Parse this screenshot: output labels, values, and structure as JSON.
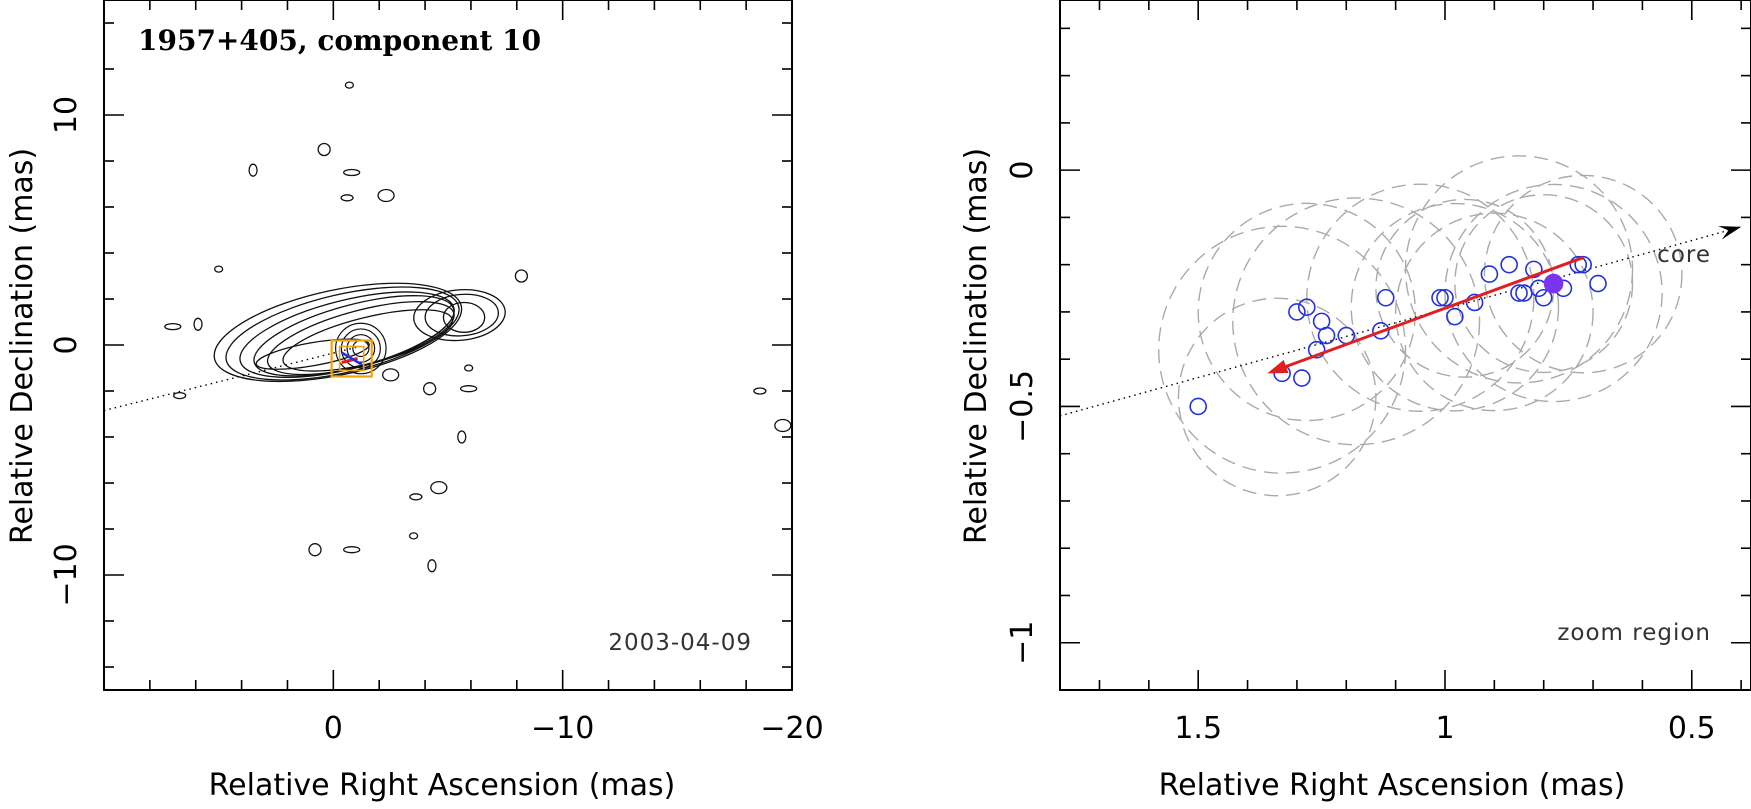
{
  "chart_data": [
    {
      "type": "contour-map",
      "title": "1957+405, component 10",
      "xlabel": "Relative Right Ascension (mas)",
      "ylabel": "Relative Declination (mas)",
      "xlim": [
        10,
        -20
      ],
      "ylim": [
        -15,
        15
      ],
      "xticks": [
        {
          "value": 0,
          "label": "0"
        },
        {
          "value": -10,
          "label": "−10"
        },
        {
          "value": -20,
          "label": "−20"
        }
      ],
      "yticks": [
        {
          "value": 10,
          "label": "10"
        },
        {
          "value": 0,
          "label": "0"
        },
        {
          "value": -10,
          "label": "−10"
        }
      ],
      "epoch": "2003-04-09",
      "jet_axis": {
        "x0": 10,
        "y0": -2.85,
        "x1": -1.0,
        "y1": -0.1
      },
      "core_contours": {
        "cx": -1.2,
        "cy": -0.15,
        "radii": [
          0.35,
          0.6,
          0.85,
          1.1
        ]
      },
      "jet_contours": [
        {
          "cx": 0.9,
          "cy": -0.4,
          "rx": 2.5,
          "ry": 0.5,
          "angle": 10
        },
        {
          "cx": -1.5,
          "cy": 0.2,
          "rx": 3.8,
          "ry": 1.0,
          "angle": 14
        },
        {
          "cx": -1.2,
          "cy": 0.3,
          "rx": 4.2,
          "ry": 1.2,
          "angle": 15
        },
        {
          "cx": -0.9,
          "cy": 0.4,
          "rx": 4.5,
          "ry": 1.35,
          "angle": 15
        },
        {
          "cx": -0.6,
          "cy": 0.45,
          "rx": 4.8,
          "ry": 1.5,
          "angle": 14
        },
        {
          "cx": -0.4,
          "cy": 0.5,
          "rx": 5.2,
          "ry": 1.7,
          "angle": 13
        },
        {
          "cx": -0.2,
          "cy": 0.55,
          "rx": 5.5,
          "ry": 1.85,
          "angle": 12
        },
        {
          "cx": -5.7,
          "cy": 1.2,
          "rx": 0.9,
          "ry": 0.65,
          "angle": 0
        },
        {
          "cx": -5.6,
          "cy": 1.3,
          "rx": 1.6,
          "ry": 0.9,
          "angle": 5
        },
        {
          "cx": -5.5,
          "cy": 1.3,
          "rx": 2.0,
          "ry": 1.1,
          "angle": 5
        }
      ],
      "noise_blobs": [
        {
          "x": -0.7,
          "y": 11.3
        },
        {
          "x": 0.4,
          "y": 8.5
        },
        {
          "x": -0.8,
          "y": 7.5
        },
        {
          "x": 3.5,
          "y": 7.6
        },
        {
          "x": -0.6,
          "y": 6.4
        },
        {
          "x": -2.3,
          "y": 6.5
        },
        {
          "x": 5.0,
          "y": 3.3
        },
        {
          "x": -8.2,
          "y": 3.0
        },
        {
          "x": 7.0,
          "y": 0.8
        },
        {
          "x": 5.9,
          "y": 0.9
        },
        {
          "x": 6.7,
          "y": -2.2
        },
        {
          "x": -2.5,
          "y": -1.3
        },
        {
          "x": -5.9,
          "y": -1.0
        },
        {
          "x": -4.2,
          "y": -1.9
        },
        {
          "x": -5.9,
          "y": -1.9
        },
        {
          "x": -5.6,
          "y": -4.0
        },
        {
          "x": -3.6,
          "y": -6.6
        },
        {
          "x": -4.6,
          "y": -6.2
        },
        {
          "x": -3.5,
          "y": -8.3
        },
        {
          "x": 0.8,
          "y": -8.9
        },
        {
          "x": -0.8,
          "y": -8.9
        },
        {
          "x": -4.3,
          "y": -9.6
        },
        {
          "x": -18.6,
          "y": -2.0
        },
        {
          "x": -19.6,
          "y": -3.5
        }
      ],
      "zoom_box": {
        "x0": -0.1,
        "x1": -1.5,
        "y0": -0.5,
        "y1": -1.1
      },
      "zoom_box_color": "#F2A20C",
      "vector_color": "#E02020"
    },
    {
      "type": "scatter",
      "xlabel": "Relative Right Ascension (mas)",
      "ylabel": "Relative Declination (mas)",
      "xlim": [
        1.78,
        0.38
      ],
      "ylim": [
        -1.1,
        0.36
      ],
      "xticks": [
        {
          "value": 1.5,
          "label": "1.5"
        },
        {
          "value": 1.0,
          "label": "1"
        },
        {
          "value": 0.5,
          "label": "0.5"
        }
      ],
      "yticks": [
        {
          "value": 0,
          "label": "0"
        },
        {
          "value": -0.5,
          "label": "−0.5"
        },
        {
          "value": -1,
          "label": "−1"
        }
      ],
      "core_label": "core",
      "region_label": "zoom region",
      "series": [
        {
          "name": "component positions",
          "marker": "open-circle",
          "color": "#2233DD",
          "x": [
            1.5,
            1.33,
            1.29,
            1.26,
            1.24,
            1.25,
            1.3,
            1.28,
            1.2,
            1.13,
            1.12,
            1.0,
            1.01,
            0.98,
            0.94,
            0.91,
            0.87,
            0.85,
            0.82,
            0.84,
            0.81,
            0.8,
            0.76,
            0.73,
            0.72,
            0.69
          ],
          "y": [
            -0.5,
            -0.43,
            -0.44,
            -0.38,
            -0.35,
            -0.32,
            -0.3,
            -0.29,
            -0.35,
            -0.34,
            -0.27,
            -0.27,
            -0.27,
            -0.31,
            -0.28,
            -0.22,
            -0.2,
            -0.26,
            -0.21,
            -0.26,
            -0.25,
            -0.27,
            -0.25,
            -0.2,
            -0.2,
            -0.24
          ]
        },
        {
          "name": "reference position",
          "marker": "filled-circle",
          "color": "#7A33EE",
          "x": [
            0.78
          ],
          "y": [
            -0.24
          ]
        }
      ],
      "error_circles": [
        {
          "x": 1.28,
          "y": -0.3,
          "r": 0.22
        },
        {
          "x": 1.34,
          "y": -0.48,
          "r": 0.2
        },
        {
          "x": 1.33,
          "y": -0.38,
          "r": 0.25
        },
        {
          "x": 1.18,
          "y": -0.32,
          "r": 0.25
        },
        {
          "x": 1.05,
          "y": -0.27,
          "r": 0.23
        },
        {
          "x": 0.98,
          "y": -0.29,
          "r": 0.21
        },
        {
          "x": 0.9,
          "y": -0.3,
          "r": 0.2
        },
        {
          "x": 0.85,
          "y": -0.21,
          "r": 0.23
        },
        {
          "x": 0.78,
          "y": -0.26,
          "r": 0.22
        },
        {
          "x": 0.72,
          "y": -0.22,
          "r": 0.2
        },
        {
          "x": 0.8,
          "y": -0.24,
          "r": 0.18
        },
        {
          "x": 0.96,
          "y": -0.25,
          "r": 0.18
        }
      ],
      "error_circle_color": "#AAAAAA",
      "motion_vector": {
        "x0": 0.72,
        "y0": -0.185,
        "x1": 1.36,
        "y1": -0.43,
        "color": "#E02020"
      },
      "jet_axis": {
        "x0": 1.78,
        "y0": -0.52,
        "x1": 0.4,
        "y1": -0.12
      }
    }
  ]
}
